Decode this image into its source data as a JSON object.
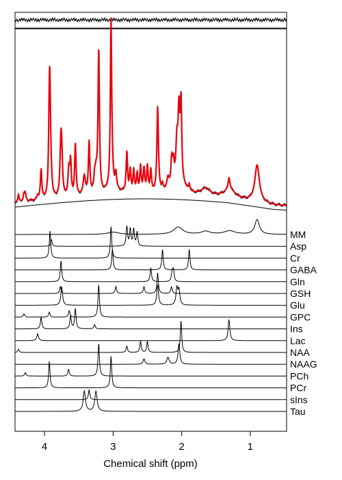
{
  "chart_data": {
    "type": "line",
    "xlabel": "Chemical shift (ppm)",
    "xlim": [
      4.43,
      0.47
    ],
    "x_ticks": [
      4,
      3,
      2,
      1
    ],
    "x_tick_labels": [
      "4",
      "3",
      "2",
      "1"
    ],
    "panels": {
      "residual": {
        "description_type": "noise trace"
      },
      "fit": {
        "data_color": "#000000",
        "fit_color": "#e8000b",
        "baseline_color": "#000000"
      }
    },
    "series": [
      {
        "name": "MM",
        "peaks": [
          [
            2.05,
            0.25,
            0.08
          ],
          [
            1.65,
            0.1,
            0.08
          ],
          [
            1.3,
            0.12,
            0.1
          ],
          [
            0.9,
            0.5,
            0.04
          ],
          [
            3.0,
            0.08,
            0.1
          ]
        ]
      },
      {
        "name": "Asp",
        "peaks": [
          [
            2.8,
            0.35,
            0.012
          ],
          [
            2.7,
            0.3,
            0.012
          ],
          [
            2.65,
            0.25,
            0.012
          ],
          [
            2.75,
            0.3,
            0.012
          ],
          [
            3.9,
            0.12,
            0.012
          ]
        ]
      },
      {
        "name": "Cr",
        "peaks": [
          [
            3.03,
            1.0,
            0.012
          ],
          [
            3.92,
            0.85,
            0.012
          ]
        ]
      },
      {
        "name": "GABA",
        "peaks": [
          [
            3.01,
            0.08,
            0.012
          ],
          [
            2.28,
            0.08,
            0.012
          ],
          [
            1.89,
            0.08,
            0.012
          ]
        ]
      },
      {
        "name": "Gln",
        "peaks": [
          [
            3.76,
            0.45,
            0.012
          ],
          [
            2.45,
            0.3,
            0.012
          ],
          [
            2.12,
            0.25,
            0.012
          ],
          [
            2.14,
            0.2,
            0.012
          ]
        ]
      },
      {
        "name": "GSH",
        "peaks": [
          [
            2.35,
            0.6,
            0.012
          ],
          [
            2.96,
            0.2,
            0.012
          ],
          [
            2.55,
            0.2,
            0.012
          ],
          [
            3.77,
            0.2,
            0.012
          ],
          [
            2.15,
            0.2,
            0.012
          ]
        ]
      },
      {
        "name": "Glu",
        "peaks": [
          [
            3.75,
            0.5,
            0.015
          ],
          [
            2.35,
            0.55,
            0.015
          ],
          [
            2.07,
            0.45,
            0.015
          ],
          [
            2.04,
            0.4,
            0.015
          ]
        ]
      },
      {
        "name": "GPC",
        "peaks": [
          [
            3.21,
            1.0,
            0.012
          ],
          [
            3.64,
            0.2,
            0.012
          ],
          [
            3.93,
            0.15,
            0.012
          ],
          [
            4.3,
            0.1,
            0.012
          ]
        ]
      },
      {
        "name": "Ins",
        "peaks": [
          [
            3.55,
            0.7,
            0.012
          ],
          [
            4.05,
            0.4,
            0.012
          ],
          [
            3.62,
            0.45,
            0.012
          ],
          [
            3.27,
            0.15,
            0.012
          ]
        ]
      },
      {
        "name": "Lac",
        "peaks": [
          [
            1.31,
            0.15,
            0.015
          ],
          [
            4.1,
            0.05,
            0.015
          ]
        ]
      },
      {
        "name": "NAA",
        "peaks": [
          [
            2.01,
            1.0,
            0.012
          ],
          [
            2.6,
            0.35,
            0.012
          ],
          [
            2.5,
            0.35,
            0.012
          ],
          [
            2.8,
            0.2,
            0.012
          ],
          [
            4.38,
            0.1,
            0.012
          ]
        ]
      },
      {
        "name": "NAAG",
        "peaks": [
          [
            2.04,
            0.45,
            0.015
          ],
          [
            2.2,
            0.15,
            0.02
          ],
          [
            2.55,
            0.12,
            0.015
          ]
        ]
      },
      {
        "name": "PCh",
        "peaks": [
          [
            3.21,
            0.95,
            0.012
          ],
          [
            3.65,
            0.2,
            0.012
          ],
          [
            4.28,
            0.1,
            0.012
          ]
        ]
      },
      {
        "name": "PCr",
        "peaks": [
          [
            3.03,
            0.9,
            0.012
          ],
          [
            3.93,
            0.75,
            0.012
          ]
        ]
      },
      {
        "name": "sIns",
        "peaks": [
          [
            3.35,
            0.7,
            0.012
          ]
        ]
      },
      {
        "name": "Tau",
        "peaks": [
          [
            3.42,
            0.25,
            0.02
          ],
          [
            3.25,
            0.25,
            0.02
          ]
        ]
      }
    ]
  }
}
